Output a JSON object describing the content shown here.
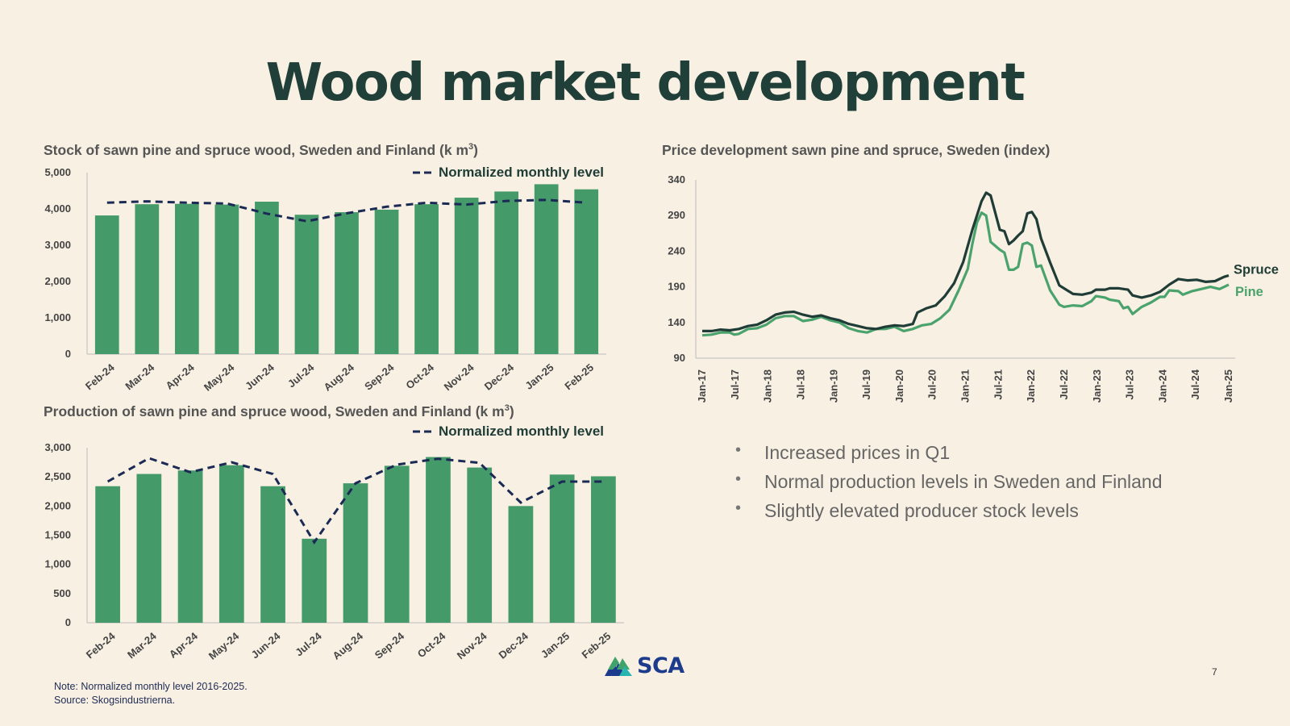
{
  "page": {
    "title": "Wood market development",
    "bullets": [
      "Increased prices in Q1",
      "Normal production levels in Sweden and Finland",
      "Slightly elevated producer stock levels"
    ],
    "note_line1": "Note: Normalized monthly level 2016-2025.",
    "note_line2": "Source: Skogsindustrierna.",
    "logo_text": "SCA",
    "page_number": "7"
  },
  "colors": {
    "bar": "#459a69",
    "normalized": "#1b2a55",
    "spruce": "#1f3d36",
    "pine": "#4aa36c"
  },
  "chart_data": [
    {
      "type": "bar",
      "title": "Stock of sawn pine and spruce wood, Sweden and Finland (k m",
      "title_sup": "3",
      "title_end": ")",
      "categories": [
        "Feb-24",
        "Mar-24",
        "Apr-24",
        "May-24",
        "Jun-24",
        "Jul-24",
        "Aug-24",
        "Sep-24",
        "Oct-24",
        "Nov-24",
        "Dec-24",
        "Jan-25",
        "Feb-25"
      ],
      "series": [
        {
          "values": [
            3820,
            4130,
            4140,
            4120,
            4200,
            3840,
            3910,
            3980,
            4130,
            4310,
            4480,
            4680,
            4540
          ]
        },
        {
          "name": "Normalized monthly level",
          "type": "line",
          "style": "dashed",
          "values": [
            4170,
            4210,
            4170,
            4150,
            3870,
            3660,
            3880,
            4060,
            4170,
            4120,
            4220,
            4250,
            4170
          ]
        }
      ],
      "yticks": [
        "0",
        "1,000",
        "2,000",
        "3,000",
        "4,000",
        "5,000"
      ],
      "ylim": [
        0,
        5000
      ],
      "legend": "top-right",
      "grid": false
    },
    {
      "type": "bar",
      "title": "Production of sawn pine and spruce wood, Sweden and Finland (k m",
      "title_sup": "3",
      "title_end": ")",
      "categories": [
        "Feb-24",
        "Mar-24",
        "Apr-24",
        "May-24",
        "Jun-24",
        "Jul-24",
        "Aug-24",
        "Sep-24",
        "Oct-24",
        "Nov-24",
        "Dec-24",
        "Jan-25",
        "Feb-25"
      ],
      "series": [
        {
          "values": [
            2340,
            2550,
            2610,
            2700,
            2340,
            1440,
            2390,
            2690,
            2840,
            2660,
            2000,
            2540,
            2510
          ]
        },
        {
          "name": "Normalized monthly level",
          "type": "line",
          "style": "dashed",
          "values": [
            2420,
            2820,
            2580,
            2750,
            2550,
            1380,
            2390,
            2710,
            2810,
            2740,
            2060,
            2420,
            2420
          ]
        }
      ],
      "yticks": [
        "0",
        "500",
        "1,000",
        "1,500",
        "2,000",
        "2,500",
        "3,000"
      ],
      "ylim": [
        0,
        3000
      ],
      "legend": "top-right",
      "grid": false
    },
    {
      "type": "line",
      "title": "Price development sawn pine and spruce, Sweden (index)",
      "xticks": [
        "Jan-17",
        "Jul-17",
        "Jan-18",
        "Jul-18",
        "Jan-19",
        "Jul-19",
        "Jan-20",
        "Jul-20",
        "Jan-21",
        "Jul-21",
        "Jan-22",
        "Jul-22",
        "Jan-23",
        "Jul-23",
        "Jan-24",
        "Jul-24",
        "Jan-25"
      ],
      "yticks": [
        "90",
        "140",
        "190",
        "240",
        "290",
        "340"
      ],
      "ylim": [
        90,
        340
      ],
      "series": [
        {
          "name": "Spruce",
          "points": [
            [
              0,
              128
            ],
            [
              2,
              128
            ],
            [
              4,
              130
            ],
            [
              6,
              129
            ],
            [
              8,
              131
            ],
            [
              10,
              135
            ],
            [
              12,
              137
            ],
            [
              14,
              143
            ],
            [
              16,
              151
            ],
            [
              18,
              154
            ],
            [
              20,
              155
            ],
            [
              22,
              151
            ],
            [
              24,
              148
            ],
            [
              26,
              150
            ],
            [
              28,
              146
            ],
            [
              30,
              143
            ],
            [
              32,
              138
            ],
            [
              34,
              135
            ],
            [
              36,
              132
            ],
            [
              38,
              131
            ],
            [
              40,
              134
            ],
            [
              42,
              136
            ],
            [
              44,
              135
            ],
            [
              46,
              138
            ],
            [
              47,
              154
            ],
            [
              49,
              160
            ],
            [
              51,
              164
            ],
            [
              53,
              177
            ],
            [
              55,
              195
            ],
            [
              57,
              225
            ],
            [
              59,
              270
            ],
            [
              61,
              310
            ],
            [
              62,
              322
            ],
            [
              63,
              318
            ],
            [
              65,
              270
            ],
            [
              66,
              268
            ],
            [
              67,
              250
            ],
            [
              68,
              255
            ],
            [
              69,
              262
            ],
            [
              70,
              268
            ],
            [
              71,
              293
            ],
            [
              72,
              295
            ],
            [
              73,
              285
            ],
            [
              74,
              258
            ],
            [
              76,
              224
            ],
            [
              78,
              192
            ],
            [
              79,
              188
            ],
            [
              81,
              180
            ],
            [
              83,
              179
            ],
            [
              85,
              182
            ],
            [
              86,
              186
            ],
            [
              88,
              186
            ],
            [
              89,
              188
            ],
            [
              91,
              188
            ],
            [
              93,
              186
            ],
            [
              94,
              178
            ],
            [
              96,
              175
            ],
            [
              98,
              178
            ],
            [
              100,
              183
            ],
            [
              102,
              193
            ],
            [
              104,
              201
            ],
            [
              106,
              199
            ],
            [
              108,
              200
            ],
            [
              110,
              197
            ],
            [
              112,
              198
            ],
            [
              114,
              204
            ],
            [
              115,
              206
            ]
          ]
        },
        {
          "name": "Pine",
          "points": [
            [
              0,
              122
            ],
            [
              2,
              123
            ],
            [
              4,
              126
            ],
            [
              6,
              126
            ],
            [
              7,
              123
            ],
            [
              8,
              124
            ],
            [
              10,
              131
            ],
            [
              12,
              132
            ],
            [
              14,
              137
            ],
            [
              16,
              146
            ],
            [
              18,
              149
            ],
            [
              20,
              149
            ],
            [
              22,
              142
            ],
            [
              24,
              144
            ],
            [
              26,
              148
            ],
            [
              28,
              143
            ],
            [
              30,
              140
            ],
            [
              32,
              132
            ],
            [
              34,
              128
            ],
            [
              36,
              126
            ],
            [
              38,
              131
            ],
            [
              40,
              131
            ],
            [
              42,
              134
            ],
            [
              44,
              128
            ],
            [
              46,
              131
            ],
            [
              48,
              136
            ],
            [
              50,
              138
            ],
            [
              52,
              146
            ],
            [
              54,
              158
            ],
            [
              56,
              185
            ],
            [
              58,
              215
            ],
            [
              59,
              250
            ],
            [
              60,
              280
            ],
            [
              61,
              294
            ],
            [
              62,
              290
            ],
            [
              63,
              253
            ],
            [
              65,
              242
            ],
            [
              66,
              238
            ],
            [
              67,
              214
            ],
            [
              68,
              214
            ],
            [
              69,
              218
            ],
            [
              70,
              250
            ],
            [
              71,
              252
            ],
            [
              72,
              248
            ],
            [
              73,
              218
            ],
            [
              74,
              220
            ],
            [
              76,
              185
            ],
            [
              78,
              165
            ],
            [
              79,
              162
            ],
            [
              81,
              164
            ],
            [
              83,
              163
            ],
            [
              85,
              170
            ],
            [
              86,
              177
            ],
            [
              88,
              175
            ],
            [
              89,
              172
            ],
            [
              91,
              170
            ],
            [
              92,
              160
            ],
            [
              93,
              162
            ],
            [
              94,
              152
            ],
            [
              96,
              162
            ],
            [
              98,
              168
            ],
            [
              100,
              176
            ],
            [
              101,
              176
            ],
            [
              102,
              185
            ],
            [
              104,
              184
            ],
            [
              105,
              179
            ],
            [
              107,
              184
            ],
            [
              109,
              187
            ],
            [
              111,
              190
            ],
            [
              113,
              187
            ],
            [
              115,
              193
            ]
          ]
        }
      ],
      "legend": "right",
      "grid": false
    }
  ]
}
